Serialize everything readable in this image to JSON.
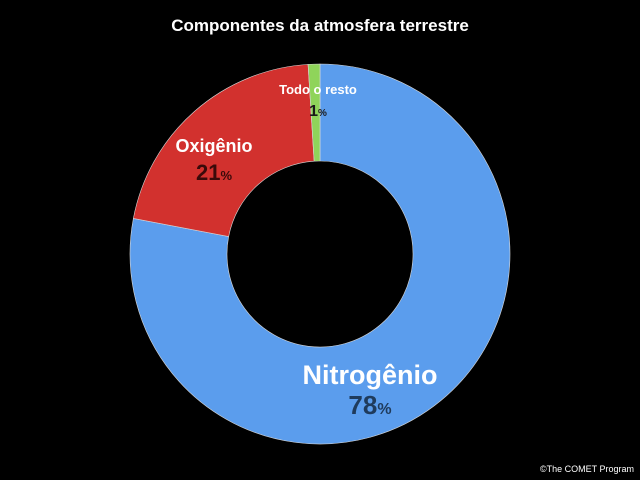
{
  "chart_data": {
    "type": "pie",
    "title": "Componentes da atmosfera terrestre",
    "slices": [
      {
        "label": "Nitrogênio",
        "value": 78,
        "color": "#5b9ded",
        "label_color": "#ffffff",
        "value_color": "#1f3b5c"
      },
      {
        "label": "Oxigênio",
        "value": 21,
        "color": "#d2312e",
        "label_color": "#ffffff",
        "value_color": "#3a0a0a"
      },
      {
        "label": "Todo o resto",
        "value": 1,
        "color": "#8fd45a",
        "label_color": "#ffffff",
        "value_color": "#1a1a1a"
      }
    ],
    "unit": "%",
    "donut": true
  },
  "credit": "©The COMET Program"
}
